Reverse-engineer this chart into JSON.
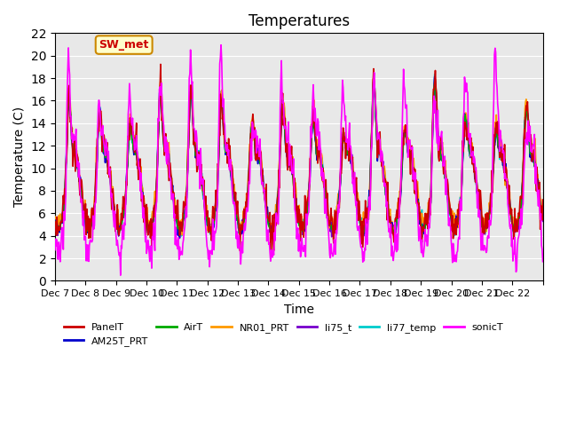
{
  "title": "Temperatures",
  "xlabel": "Time",
  "ylabel": "Temperature (C)",
  "ylim": [
    0,
    22
  ],
  "yticks": [
    0,
    2,
    4,
    6,
    8,
    10,
    12,
    14,
    16,
    18,
    20,
    22
  ],
  "series": {
    "PanelT": {
      "color": "#cc0000",
      "lw": 1.2
    },
    "AM25T_PRT": {
      "color": "#0000cc",
      "lw": 1.2
    },
    "AirT": {
      "color": "#00aa00",
      "lw": 1.2
    },
    "NR01_PRT": {
      "color": "#ff9900",
      "lw": 1.2
    },
    "li75_t": {
      "color": "#7700cc",
      "lw": 1.2
    },
    "li77_temp": {
      "color": "#00cccc",
      "lw": 1.2
    },
    "sonicT": {
      "color": "#ff00ff",
      "lw": 1.2
    }
  },
  "xtick_labels": [
    "Dec 7",
    "Dec 8",
    "Dec 9",
    "Dec 10",
    "Dec 11",
    "Dec 12",
    "Dec 13",
    "Dec 14",
    "Dec 15",
    "Dec 16",
    "Dec 17",
    "Dec 18",
    "Dec 19",
    "Dec 20",
    "Dec 21",
    "Dec 22",
    ""
  ],
  "n_days": 16,
  "pts_per_day": 48,
  "annotation_text": "SW_met",
  "annotation_color": "#cc0000",
  "annotation_bg": "#ffffcc",
  "annotation_edge": "#cc8800",
  "background_color": "#e8e8e8"
}
